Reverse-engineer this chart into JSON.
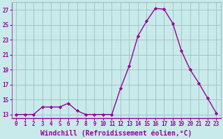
{
  "x": [
    0,
    1,
    2,
    3,
    4,
    5,
    6,
    7,
    8,
    9,
    10,
    11,
    12,
    13,
    14,
    15,
    16,
    17,
    18,
    19,
    20,
    21,
    22,
    23
  ],
  "y": [
    13,
    13,
    13,
    14,
    14,
    14,
    14.5,
    13.5,
    13,
    13,
    13,
    13,
    16.5,
    19.5,
    23.5,
    25.5,
    27.2,
    27.1,
    25.2,
    21.5,
    19,
    17.2,
    15.2,
    13.2
  ],
  "line_color": "#990099",
  "marker": "D",
  "marker_size": 2.2,
  "bg_color": "#c8eaea",
  "grid_color": "#9fbfbf",
  "xlabel": "Windchill (Refroidissement éolien,°C)",
  "xlabel_color": "#990099",
  "tick_color": "#990099",
  "ylim": [
    12.5,
    28
  ],
  "yticks": [
    13,
    15,
    17,
    19,
    21,
    23,
    25,
    27
  ],
  "xlim": [
    -0.5,
    23.5
  ],
  "xticks": [
    0,
    1,
    2,
    3,
    4,
    5,
    6,
    7,
    8,
    9,
    10,
    11,
    12,
    13,
    14,
    15,
    16,
    17,
    18,
    19,
    20,
    21,
    22,
    23
  ],
  "line_width": 1.0,
  "tick_fontsize": 5.5,
  "xlabel_fontsize": 7.0,
  "ylabel_fontsize": 6.0
}
